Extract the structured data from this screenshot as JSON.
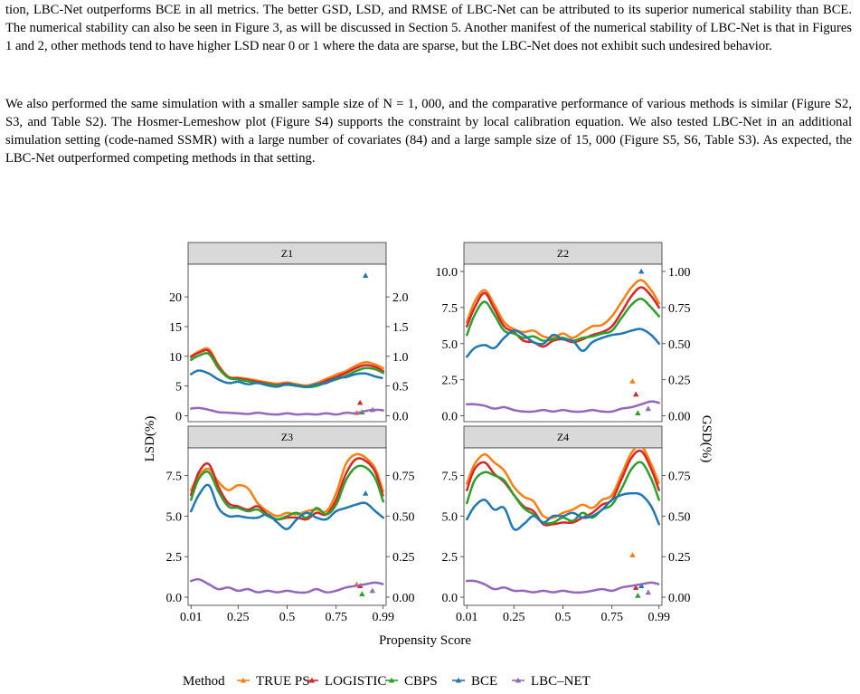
{
  "paragraphs": [
    "tion, LBC-Net outperforms BCE in all metrics. The better GSD, LSD, and RMSE of LBC-Net can be attributed to its superior numerical stability than BCE. The numerical stability can also be seen in Figure 3, as will be discussed in Section 5. Another manifest of the numerical stability of LBC-Net is that in Figures 1 and 2, other methods tend to have higher LSD near 0 or 1 where the data are sparse, but the LBC-Net does not exhibit such undesired behavior.",
    "We also performed the same simulation with a smaller sample size of N = 1, 000, and the comparative performance of various methods is similar (Figure S2, S3, and Table S2). The Hosmer-Lemeshow plot (Figure S4) supports the constraint by local calibration equation. We also tested LBC-Net in an additional simulation setting (code-named SSMR) with a large number of covariates (84) and a large sample size of 15, 000 (Figure S5, S6, Table S3). As expected, the LBC-Net outperformed competing methods in that setting."
  ],
  "chart_data": {
    "type": "line",
    "title": "",
    "xlabel": "Propensity Score",
    "ylabel": "LSD(%)",
    "ylabel_right": "GSD(%)",
    "x_ticks": [
      0.01,
      0.25,
      0.5,
      0.75,
      0.99
    ],
    "x_tick_labels": [
      "0.01",
      "0.25",
      "0.5",
      "0.75",
      "0.99"
    ],
    "legend": {
      "title": "Method",
      "position": "bottom",
      "entries": [
        "TRUE PS",
        "LOGISTIC",
        "CBPS",
        "BCE",
        "LBC–NET"
      ]
    },
    "colors": {
      "TRUE PS": "#ff7f0e",
      "LOGISTIC": "#d62728",
      "CBPS": "#2ca02c",
      "BCE": "#1f77b4",
      "LBC-NET": "#9467bd"
    },
    "x": [
      0.01,
      0.05,
      0.1,
      0.15,
      0.2,
      0.25,
      0.3,
      0.35,
      0.4,
      0.45,
      0.5,
      0.55,
      0.6,
      0.65,
      0.7,
      0.75,
      0.8,
      0.85,
      0.9,
      0.95,
      0.99
    ],
    "panels": [
      {
        "strip": "Z1",
        "lsd_ticks": [
          0,
          5,
          10,
          15,
          20
        ],
        "lsd_tick_labels": [
          "0",
          "5",
          "10",
          "15",
          "20"
        ],
        "lsd_lim": [
          -1,
          25.5
        ],
        "gsd_ticks": [
          0,
          0.5,
          1,
          1.5,
          2
        ],
        "gsd_tick_labels": [
          "0.0",
          "0.5",
          "1.0",
          "1.5",
          "2.0"
        ],
        "gsd_per_lsd": 0.1,
        "series": [
          {
            "name": "TRUE PS",
            "lsd": [
              10,
              10.8,
              11.2,
              8.5,
              6.6,
              6.4,
              6.2,
              5.9,
              5.6,
              5.4,
              5.6,
              5.3,
              5.1,
              5.5,
              6.2,
              6.9,
              7.5,
              8.4,
              9,
              8.6,
              8
            ],
            "gsd": 0.05
          },
          {
            "name": "LOGISTIC",
            "lsd": [
              9.9,
              10.6,
              10.9,
              8.3,
              6.5,
              6.3,
              6,
              5.7,
              5.4,
              5.2,
              5.4,
              5.1,
              4.9,
              5.2,
              5.9,
              6.5,
              7.2,
              8,
              8.5,
              8.2,
              7.5
            ],
            "gsd": 0.22
          },
          {
            "name": "CBPS",
            "lsd": [
              9.4,
              10.1,
              10.4,
              8,
              6.4,
              6.1,
              5.8,
              5.5,
              5.3,
              5.1,
              5.2,
              5,
              4.8,
              5,
              5.6,
              6.1,
              6.7,
              7.5,
              8,
              7.8,
              7.2
            ],
            "gsd": 0.06
          },
          {
            "name": "BCE",
            "lsd": [
              7,
              7.6,
              7.1,
              6.1,
              5.5,
              5.7,
              5.3,
              5.5,
              5.1,
              4.9,
              5.3,
              5.1,
              4.9,
              5.3,
              5.5,
              6.3,
              6.5,
              7,
              7.1,
              6.6,
              6.3
            ],
            "gsd": 2.36
          },
          {
            "name": "LBC-NET",
            "lsd": [
              1.2,
              1.3,
              1,
              0.6,
              0.5,
              0.4,
              0.3,
              0.5,
              0.3,
              0.2,
              0.4,
              0.2,
              0.3,
              0.2,
              0.4,
              0.2,
              0.5,
              0.4,
              0.8,
              1,
              0.9
            ],
            "gsd": 0.1
          }
        ]
      },
      {
        "strip": "Z2",
        "lsd_ticks": [
          0,
          2.5,
          5,
          7.5,
          10
        ],
        "lsd_tick_labels": [
          "0.0",
          "2.5",
          "5.0",
          "7.5",
          "10.0"
        ],
        "lsd_lim": [
          -0.4,
          10.5
        ],
        "gsd_ticks": [
          0,
          0.25,
          0.5,
          0.75,
          1
        ],
        "gsd_tick_labels": [
          "0.00",
          "0.25",
          "0.50",
          "0.75",
          "1.00"
        ],
        "gsd_per_lsd": 0.1,
        "series": [
          {
            "name": "TRUE PS",
            "lsd": [
              6.5,
              7.9,
              8.7,
              7.7,
              6.5,
              6,
              5.8,
              5.9,
              5.5,
              5.4,
              5.7,
              5.4,
              5.8,
              6.2,
              6.3,
              6.9,
              7.9,
              8.9,
              9.4,
              8.7,
              7.8
            ],
            "gsd": 0.24
          },
          {
            "name": "LOGISTIC",
            "lsd": [
              6.2,
              7.5,
              8.5,
              7.4,
              6.2,
              5.8,
              5.2,
              5.1,
              4.8,
              5.2,
              5.3,
              5.1,
              5.3,
              5.6,
              5.8,
              6.2,
              7.2,
              8.3,
              8.9,
              8.3,
              7.5
            ],
            "gsd": 0.15
          },
          {
            "name": "CBPS",
            "lsd": [
              5.6,
              7,
              7.9,
              7,
              5.9,
              5.7,
              5.4,
              5.5,
              5.2,
              5.3,
              5.4,
              5.2,
              5.4,
              5.5,
              5.7,
              5.9,
              6.8,
              7.7,
              8.1,
              7.5,
              6.9
            ],
            "gsd": 0.02
          },
          {
            "name": "BCE",
            "lsd": [
              4.1,
              4.7,
              4.9,
              4.7,
              5.4,
              5.9,
              5.6,
              5.1,
              5,
              5.6,
              5.3,
              5.2,
              4.5,
              5.1,
              5.4,
              5.6,
              5.7,
              5.9,
              6,
              5.6,
              5
            ],
            "gsd": 1
          },
          {
            "name": "LBC-NET",
            "lsd": [
              0.8,
              0.8,
              0.7,
              0.5,
              0.6,
              0.4,
              0.3,
              0.3,
              0.4,
              0.3,
              0.4,
              0.3,
              0.3,
              0.4,
              0.3,
              0.3,
              0.5,
              0.6,
              0.8,
              1,
              0.9
            ],
            "gsd": 0.05
          }
        ]
      },
      {
        "strip": "Z3",
        "lsd_ticks": [
          0,
          2.5,
          5,
          7.5
        ],
        "lsd_tick_labels": [
          "0.0",
          "2.5",
          "5.0",
          "7.5"
        ],
        "lsd_lim": [
          -0.5,
          9.2
        ],
        "gsd_ticks": [
          0,
          0.25,
          0.5,
          0.75
        ],
        "gsd_tick_labels": [
          "0.00",
          "0.25",
          "0.50",
          "0.75"
        ],
        "gsd_per_lsd": 0.1,
        "series": [
          {
            "name": "TRUE PS",
            "lsd": [
              6.6,
              7.5,
              7.9,
              7.1,
              6.6,
              6.9,
              6.7,
              5.8,
              5.3,
              5,
              5.2,
              5.1,
              5.3,
              5.4,
              5.3,
              6.4,
              8.2,
              8.8,
              8.6,
              7.9,
              6.5
            ],
            "gsd": 0.08
          },
          {
            "name": "LOGISTIC",
            "lsd": [
              6.3,
              7.7,
              8.2,
              6.8,
              5.8,
              5.6,
              5.4,
              5.6,
              5.1,
              4.8,
              4.9,
              4.9,
              4.8,
              5.2,
              5.1,
              6,
              7.6,
              8.5,
              8.4,
              7.7,
              6.2
            ],
            "gsd": 0.07
          },
          {
            "name": "CBPS",
            "lsd": [
              6,
              7.3,
              7.7,
              6.5,
              5.6,
              5.5,
              5.3,
              5.4,
              5,
              4.8,
              5,
              5.2,
              4.9,
              5.5,
              5.1,
              5.7,
              7.2,
              8,
              8,
              7.3,
              5.9
            ],
            "gsd": 0.02
          },
          {
            "name": "BCE",
            "lsd": [
              5.3,
              6.3,
              6.9,
              5.5,
              5,
              5,
              4.9,
              4.9,
              5.1,
              4.6,
              4.2,
              4.8,
              5.2,
              4.9,
              4.8,
              5.3,
              5.5,
              5.7,
              5.8,
              5.3,
              4.9
            ],
            "gsd": 0.64
          },
          {
            "name": "LBC-NET",
            "lsd": [
              1,
              1.1,
              0.8,
              0.5,
              0.6,
              0.4,
              0.5,
              0.3,
              0.4,
              0.3,
              0.4,
              0.3,
              0.3,
              0.5,
              0.3,
              0.4,
              0.6,
              0.7,
              0.8,
              0.9,
              0.8
            ],
            "gsd": 0.04
          }
        ]
      },
      {
        "strip": "Z4",
        "lsd_ticks": [
          0,
          2.5,
          5,
          7.5
        ],
        "lsd_tick_labels": [
          "0.0",
          "2.5",
          "5.0",
          "7.5"
        ],
        "lsd_lim": [
          -0.5,
          9.2
        ],
        "gsd_ticks": [
          0,
          0.25,
          0.5,
          0.75
        ],
        "gsd_tick_labels": [
          "0.00",
          "0.25",
          "0.50",
          "0.75"
        ],
        "gsd_per_lsd": 0.1,
        "series": [
          {
            "name": "TRUE PS",
            "lsd": [
              7,
              8.2,
              8.8,
              8.3,
              7.8,
              6.8,
              6.2,
              5.9,
              5,
              4.9,
              5.2,
              5.4,
              5.7,
              5.5,
              6,
              6.3,
              7.6,
              8.9,
              9.3,
              8.2,
              7
            ],
            "gsd": 0.26
          },
          {
            "name": "LOGISTIC",
            "lsd": [
              6.6,
              7.9,
              8.3,
              7.6,
              7.1,
              6.3,
              5.6,
              5.3,
              4.5,
              4.5,
              4.6,
              4.6,
              4.9,
              5.2,
              5.7,
              6,
              7.3,
              8.6,
              9,
              7.9,
              6.6
            ],
            "gsd": 0.06
          },
          {
            "name": "CBPS",
            "lsd": [
              5.8,
              7.2,
              7.7,
              7.5,
              7.2,
              6.3,
              5.5,
              5.1,
              4.6,
              4.6,
              4.9,
              4.7,
              5.2,
              4.9,
              5.4,
              5.7,
              6.7,
              7.9,
              8.3,
              7.3,
              6
            ],
            "gsd": 0.01
          },
          {
            "name": "BCE",
            "lsd": [
              4.8,
              5.6,
              6,
              5.4,
              5.5,
              4.2,
              4.5,
              5,
              4.6,
              5,
              5,
              5.2,
              4.9,
              5,
              5.4,
              6,
              6.3,
              6.4,
              6.3,
              5.6,
              4.5
            ],
            "gsd": 0.07
          },
          {
            "name": "LBC-NET",
            "lsd": [
              1,
              1,
              0.8,
              0.5,
              0.6,
              0.4,
              0.4,
              0.3,
              0.4,
              0.3,
              0.4,
              0.3,
              0.3,
              0.4,
              0.5,
              0.4,
              0.6,
              0.7,
              0.8,
              0.9,
              0.8
            ],
            "gsd": 0.03
          }
        ]
      }
    ]
  }
}
